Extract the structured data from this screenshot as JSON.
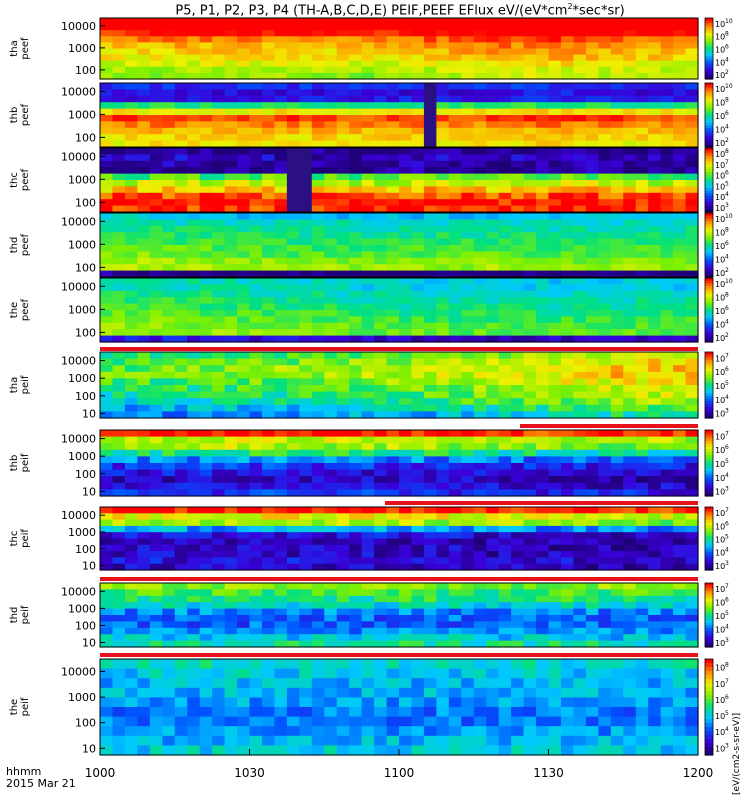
{
  "title": {
    "main": "P5, P1, P2, P3, P4 (TH-A,B,C,D,E) PEIF,PEEF EFlux eV/(eV*cm",
    "sup": "2",
    "tail": "*sec*sr)"
  },
  "time_axis": {
    "label_line1": "hhmm",
    "label_line2": "2015 Mar 21",
    "ticks": [
      "1000",
      "1030",
      "1100",
      "1130",
      "1200"
    ]
  },
  "colorbar_unit_label": "[eV/(cm2-s-sr-eV)]",
  "colors": {
    "background": "#ffffff",
    "separator_red": "#e8101a",
    "frame": "#000000"
  },
  "chart_data": [
    {
      "type": "heatmap",
      "id": "tha_peef",
      "ylabel": [
        "tha",
        "peef"
      ],
      "yticks": [
        "10000",
        "1000",
        "100"
      ],
      "colorbar_ticks": [
        "10",
        "8",
        "6",
        "4",
        "2"
      ],
      "xlim": [
        1000,
        1200
      ],
      "zmin": 2,
      "zmax": 10,
      "energy_levels": [
        12.5,
        11.2,
        9.8,
        9.0,
        8.5,
        8.2,
        8.0,
        7.6,
        7.2,
        7.0
      ],
      "time_trend": [
        0.0,
        0.1,
        0.2,
        0.1,
        0.0,
        0.3,
        0.6,
        0.6,
        0.4,
        0.2
      ],
      "gaps": []
    },
    {
      "type": "heatmap",
      "id": "thb_peef",
      "ylabel": [
        "thb",
        "peef"
      ],
      "yticks": [
        "10000",
        "1000",
        "100"
      ],
      "colorbar_ticks": [
        "10",
        "8",
        "6",
        "4",
        "2"
      ],
      "xlim": [
        1000,
        1200
      ],
      "zmin": 2,
      "zmax": 10,
      "energy_levels": [
        3.5,
        3.0,
        3.2,
        6.0,
        8.0,
        9.5,
        9.0,
        8.5,
        8.2,
        8.0
      ],
      "time_trend": [
        0.0,
        0.1,
        0.0,
        0.1,
        0.0,
        0.1,
        0.1,
        0.2,
        0.0,
        0.1
      ],
      "gaps": [
        [
          1105,
          1112
        ]
      ]
    },
    {
      "type": "heatmap",
      "id": "thc_peef",
      "ylabel": [
        "thc",
        "peef"
      ],
      "yticks": [
        "10000",
        "1000",
        "100"
      ],
      "colorbar_ticks": [
        "8",
        "7",
        "6",
        "5",
        "4",
        "3"
      ],
      "xlim": [
        1000,
        1200
      ],
      "zmin": 3,
      "zmax": 8,
      "energy_levels": [
        3.0,
        3.4,
        3.2,
        3.2,
        5.8,
        6.4,
        7.0,
        7.6,
        8.0,
        7.8
      ],
      "time_trend": [
        0.0,
        0.1,
        0.0,
        0.1,
        0.0,
        0.1,
        0.0,
        0.1,
        0.0,
        0.0
      ],
      "gaps": [
        [
          1062,
          1070
        ]
      ]
    },
    {
      "type": "heatmap",
      "id": "thd_peef",
      "ylabel": [
        "thd",
        "peef"
      ],
      "yticks": [
        "10000",
        "1000",
        "100"
      ],
      "colorbar_ticks": [
        "10",
        "8",
        "6",
        "4",
        "2"
      ],
      "xlim": [
        1000,
        1200
      ],
      "zmin": 2,
      "zmax": 10,
      "energy_levels": [
        5.0,
        5.5,
        5.8,
        6.0,
        6.2,
        6.4,
        6.6,
        7.0,
        7.2,
        2.0
      ],
      "time_trend": [
        0.4,
        0.2,
        0.1,
        0.0,
        0.0,
        0.0,
        0.0,
        0.0,
        0.0,
        0.0
      ],
      "gaps": []
    },
    {
      "type": "heatmap",
      "id": "the_peef",
      "ylabel": [
        "the",
        "peef"
      ],
      "yticks": [
        "10000",
        "1000",
        "100"
      ],
      "colorbar_ticks": [
        "10",
        "8",
        "6",
        "4",
        "2"
      ],
      "xlim": [
        1000,
        1200
      ],
      "zmin": 2,
      "zmax": 10,
      "energy_levels": [
        5.5,
        5.5,
        5.8,
        6.0,
        6.2,
        6.4,
        6.6,
        6.8,
        7.0,
        3.0
      ],
      "time_trend": [
        0.3,
        0.2,
        0.1,
        0.0,
        -0.2,
        -0.3,
        -0.3,
        -0.3,
        -0.3,
        -0.3
      ],
      "gaps": []
    },
    {
      "type": "heatmap",
      "id": "tha_peif",
      "ylabel": [
        "tha",
        "peif"
      ],
      "yticks": [
        "10000",
        "1000",
        "100",
        "10"
      ],
      "colorbar_ticks": [
        "7",
        "6",
        "5",
        "4",
        "3"
      ],
      "xlim": [
        1000,
        1200
      ],
      "zmin": 2.5,
      "zmax": 7.5,
      "energy_levels": [
        5.0,
        5.2,
        5.4,
        5.4,
        5.2,
        5.0,
        4.8,
        4.6,
        4.2,
        3.8
      ],
      "time_trend": [
        0.0,
        0.1,
        0.2,
        0.3,
        0.4,
        0.5,
        0.7,
        0.9,
        1.1,
        1.2
      ],
      "gaps": []
    },
    {
      "type": "heatmap",
      "id": "thb_peif",
      "ylabel": [
        "thb",
        "peif"
      ],
      "yticks": [
        "10000",
        "1000",
        "100",
        "10"
      ],
      "colorbar_ticks": [
        "7",
        "6",
        "5",
        "4",
        "3"
      ],
      "xlim": [
        1000,
        1200
      ],
      "zmin": 2.5,
      "zmax": 7.5,
      "energy_levels": [
        7.5,
        6.0,
        5.8,
        5.0,
        4.0,
        3.5,
        3.2,
        3.0,
        3.2,
        3.5
      ],
      "time_trend": [
        0.0,
        0.0,
        0.1,
        0.0,
        0.0,
        0.0,
        -0.1,
        -0.2,
        -0.2,
        -0.2
      ],
      "gaps": []
    },
    {
      "type": "heatmap",
      "id": "thc_peif",
      "ylabel": [
        "thc",
        "peif"
      ],
      "yticks": [
        "10000",
        "1000",
        "100",
        "10"
      ],
      "colorbar_ticks": [
        "7",
        "6",
        "5",
        "4",
        "3"
      ],
      "xlim": [
        1000,
        1200
      ],
      "zmin": 2.5,
      "zmax": 7.5,
      "energy_levels": [
        7.5,
        6.2,
        5.8,
        4.2,
        3.2,
        3.0,
        3.0,
        3.0,
        3.2,
        3.0
      ],
      "time_trend": [
        0.0,
        0.0,
        0.0,
        0.0,
        0.0,
        0.0,
        -0.1,
        -0.1,
        -0.2,
        -0.2
      ],
      "gaps": []
    },
    {
      "type": "heatmap",
      "id": "thd_peif",
      "ylabel": [
        "thd",
        "peif"
      ],
      "yticks": [
        "10000",
        "1000",
        "100",
        "10"
      ],
      "colorbar_ticks": [
        "7",
        "6",
        "5",
        "4",
        "3"
      ],
      "xlim": [
        1000,
        1200
      ],
      "zmin": 2.5,
      "zmax": 7.5,
      "energy_levels": [
        5.6,
        5.2,
        5.0,
        4.6,
        4.0,
        3.8,
        3.8,
        4.0,
        4.4,
        4.8
      ],
      "time_trend": [
        0.0,
        0.1,
        0.0,
        0.1,
        0.0,
        0.1,
        0.0,
        0.1,
        0.0,
        0.0
      ],
      "gaps": []
    },
    {
      "type": "heatmap",
      "id": "the_peif",
      "ylabel": [
        "the",
        "peif"
      ],
      "yticks": [
        "10000",
        "1000",
        "100",
        "10"
      ],
      "colorbar_ticks": [
        "8",
        "7",
        "6",
        "5",
        "4",
        "3"
      ],
      "xlim": [
        1000,
        1200
      ],
      "zmin": 3,
      "zmax": 8.5,
      "energy_levels": [
        5.4,
        5.2,
        5.0,
        5.0,
        4.8,
        4.6,
        4.6,
        4.8,
        5.0,
        5.2
      ],
      "time_trend": [
        0.0,
        0.0,
        0.1,
        0.0,
        0.0,
        0.0,
        0.0,
        0.0,
        0.0,
        0.0
      ],
      "gaps": []
    }
  ]
}
